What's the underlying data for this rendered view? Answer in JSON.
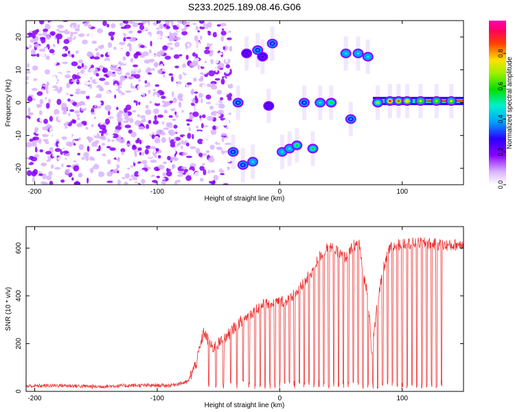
{
  "title": "S233.2025.189.08.46.G06",
  "colors": {
    "snr_line": "#ee3333",
    "axis": "#000000"
  },
  "chart_data": [
    {
      "type": "heatmap",
      "xlabel": "Height of straight line (km)",
      "ylabel": "Frequency (Hz)",
      "xlim": [
        -207,
        150
      ],
      "ylim": [
        -25,
        25
      ],
      "x_ticks": [
        -200,
        -100,
        0,
        100
      ],
      "y_ticks": [
        -20,
        -10,
        0,
        10,
        20
      ],
      "colorbar": {
        "label": "Normalized spectral amplitude",
        "range": [
          0,
          1
        ],
        "ticks": [
          "0.0",
          "0.2",
          "0.4",
          "0.6",
          "0.8"
        ],
        "colormap": "rainbow (white-violet-blue-cyan-green-yellow-red-magenta)"
      },
      "regions": [
        {
          "x_range": [
            -207,
            -40
          ],
          "freq_range": [
            -25,
            25
          ],
          "description_level": 0.15
        }
      ],
      "features": [
        {
          "x": -38,
          "freq": -15,
          "amp": 0.4
        },
        {
          "x": -34,
          "freq": 0,
          "amp": 0.4
        },
        {
          "x": -30,
          "freq": -19,
          "amp": 0.45
        },
        {
          "x": -27,
          "freq": 15,
          "amp": 0.35
        },
        {
          "x": -22,
          "freq": -18,
          "amp": 0.5
        },
        {
          "x": -18,
          "freq": 16,
          "amp": 0.4
        },
        {
          "x": -14,
          "freq": 14,
          "amp": 0.35
        },
        {
          "x": -9,
          "freq": -1,
          "amp": 0.35
        },
        {
          "x": -6,
          "freq": 18,
          "amp": 0.45
        },
        {
          "x": 2,
          "freq": -15,
          "amp": 0.5
        },
        {
          "x": 8,
          "freq": -14,
          "amp": 0.55
        },
        {
          "x": 14,
          "freq": -13,
          "amp": 0.6
        },
        {
          "x": 20,
          "freq": 0,
          "amp": 0.45
        },
        {
          "x": 27,
          "freq": -14,
          "amp": 0.6
        },
        {
          "x": 33,
          "freq": 0,
          "amp": 0.55
        },
        {
          "x": 42,
          "freq": 0,
          "amp": 0.6
        },
        {
          "x": 54,
          "freq": 15,
          "amp": 0.55
        },
        {
          "x": 58,
          "freq": -5,
          "amp": 0.4
        },
        {
          "x": 64,
          "freq": 15,
          "amp": 0.55
        },
        {
          "x": 72,
          "freq": 14,
          "amp": 0.55
        },
        {
          "x": 80,
          "freq": 0,
          "amp": 0.7
        },
        {
          "x": 90,
          "freq": 0.5,
          "amp": 0.95
        },
        {
          "x": 97,
          "freq": 0.5,
          "amp": 0.9
        },
        {
          "x": 104,
          "freq": 0.5,
          "amp": 0.85
        },
        {
          "x": 115,
          "freq": 0.5,
          "amp": 0.8
        },
        {
          "x": 128,
          "freq": 0.5,
          "amp": 0.75
        },
        {
          "x": 140,
          "freq": 0.5,
          "amp": 0.8
        }
      ]
    },
    {
      "type": "line",
      "xlabel": "Height of straight line (km)",
      "ylabel": "SNR (10 * v/v)",
      "xlim": [
        -207,
        150
      ],
      "ylim": [
        0,
        690
      ],
      "x_ticks": [
        -200,
        -100,
        0,
        100
      ],
      "y_ticks": [
        0,
        200,
        400,
        600
      ],
      "grid": false,
      "x": [
        -207,
        -180,
        -150,
        -120,
        -90,
        -75,
        -68,
        -62,
        -55,
        -45,
        -35,
        -25,
        -15,
        -5,
        5,
        15,
        25,
        32,
        40,
        50,
        55,
        60,
        65,
        68,
        72,
        75,
        80,
        85,
        90,
        100,
        110,
        120,
        130,
        140,
        150
      ],
      "values": [
        22,
        25,
        20,
        25,
        25,
        40,
        120,
        250,
        180,
        220,
        280,
        320,
        360,
        370,
        380,
        420,
        490,
        560,
        610,
        570,
        560,
        610,
        620,
        480,
        420,
        150,
        380,
        520,
        600,
        620,
        620,
        620,
        615,
        610,
        620
      ],
      "dropouts_x": [
        -58,
        -52,
        -46,
        -40,
        -35,
        -30,
        -25,
        -20,
        -16,
        -12,
        -8,
        -4,
        0,
        4,
        8,
        12,
        16,
        20,
        24,
        28,
        32,
        36,
        40,
        44,
        48,
        52,
        56,
        60,
        64,
        68,
        72,
        76,
        80,
        84,
        88,
        92,
        96,
        100,
        104,
        108,
        112,
        116,
        120,
        124,
        128,
        132
      ]
    }
  ]
}
